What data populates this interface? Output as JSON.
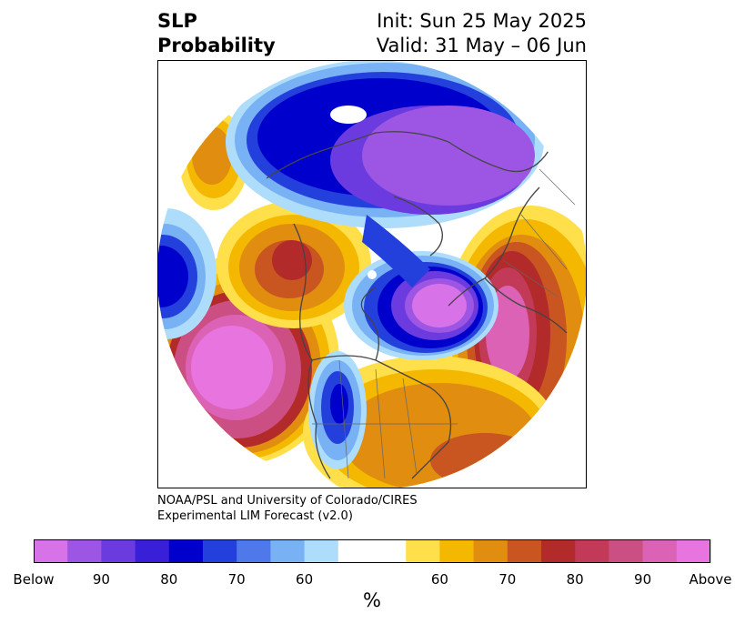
{
  "title": {
    "left_line1": "SLP",
    "left_line2": "Probability",
    "right_line1": "Init: Sun 25 May 2025",
    "right_line2": "Valid: 31 May – 06 Jun"
  },
  "credit": {
    "line1": "NOAA/PSL and University of Colorado/CIRES",
    "line2": "Experimental LIM Forecast (v2.0)"
  },
  "colorbar": {
    "unit": "%",
    "colors": [
      "#d772e8",
      "#9d55e4",
      "#6b3be0",
      "#3a1fd8",
      "#0000cc",
      "#2440dc",
      "#4f78ea",
      "#78b2f4",
      "#aedcfb",
      "#ffffff",
      "#ffffff",
      "#ffe04a",
      "#f5b800",
      "#e08d10",
      "#c95520",
      "#b22a2a",
      "#c23a58",
      "#cc4f84",
      "#dc62b6",
      "#e874e0"
    ],
    "tick_labels": [
      "Below",
      "90",
      "80",
      "70",
      "60",
      "60",
      "70",
      "80",
      "90",
      "Above"
    ]
  },
  "map": {
    "projection": "north-polar-stereographic",
    "colors": {
      "below_strong": "#d772e8",
      "below_purple": "#9d55e4",
      "below_blue": "#0000cc",
      "below_light": "#aedcfb",
      "above_yellow": "#ffe04a",
      "above_orange": "#e08d10",
      "above_red": "#b22a2a",
      "above_pink": "#dc62b6",
      "coastline": "#444444"
    }
  }
}
